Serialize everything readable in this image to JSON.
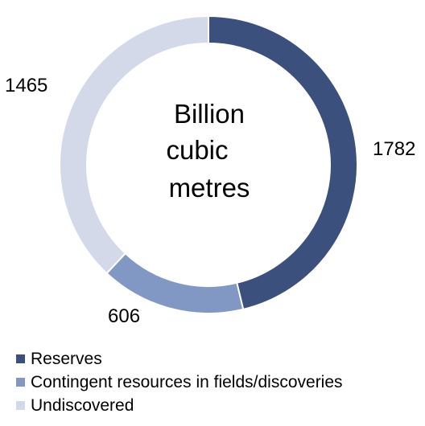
{
  "chart_data": {
    "type": "pie",
    "style": "donut",
    "center_label": [
      "Billion",
      "cubic",
      "metres"
    ],
    "categories": [
      "Reserves",
      "Contingent resources in fields/discoveries",
      "Undiscovered"
    ],
    "values": [
      1782,
      606,
      1465
    ],
    "data_labels": [
      "1782",
      "606",
      "1465"
    ],
    "colors": [
      "#3c507e",
      "#8197c4",
      "#d3d9e9"
    ],
    "legend": {
      "placement": "bottom-left",
      "entries": [
        "Reserves",
        "Contingent resources in fields/discoveries",
        "Undiscovered"
      ]
    }
  }
}
